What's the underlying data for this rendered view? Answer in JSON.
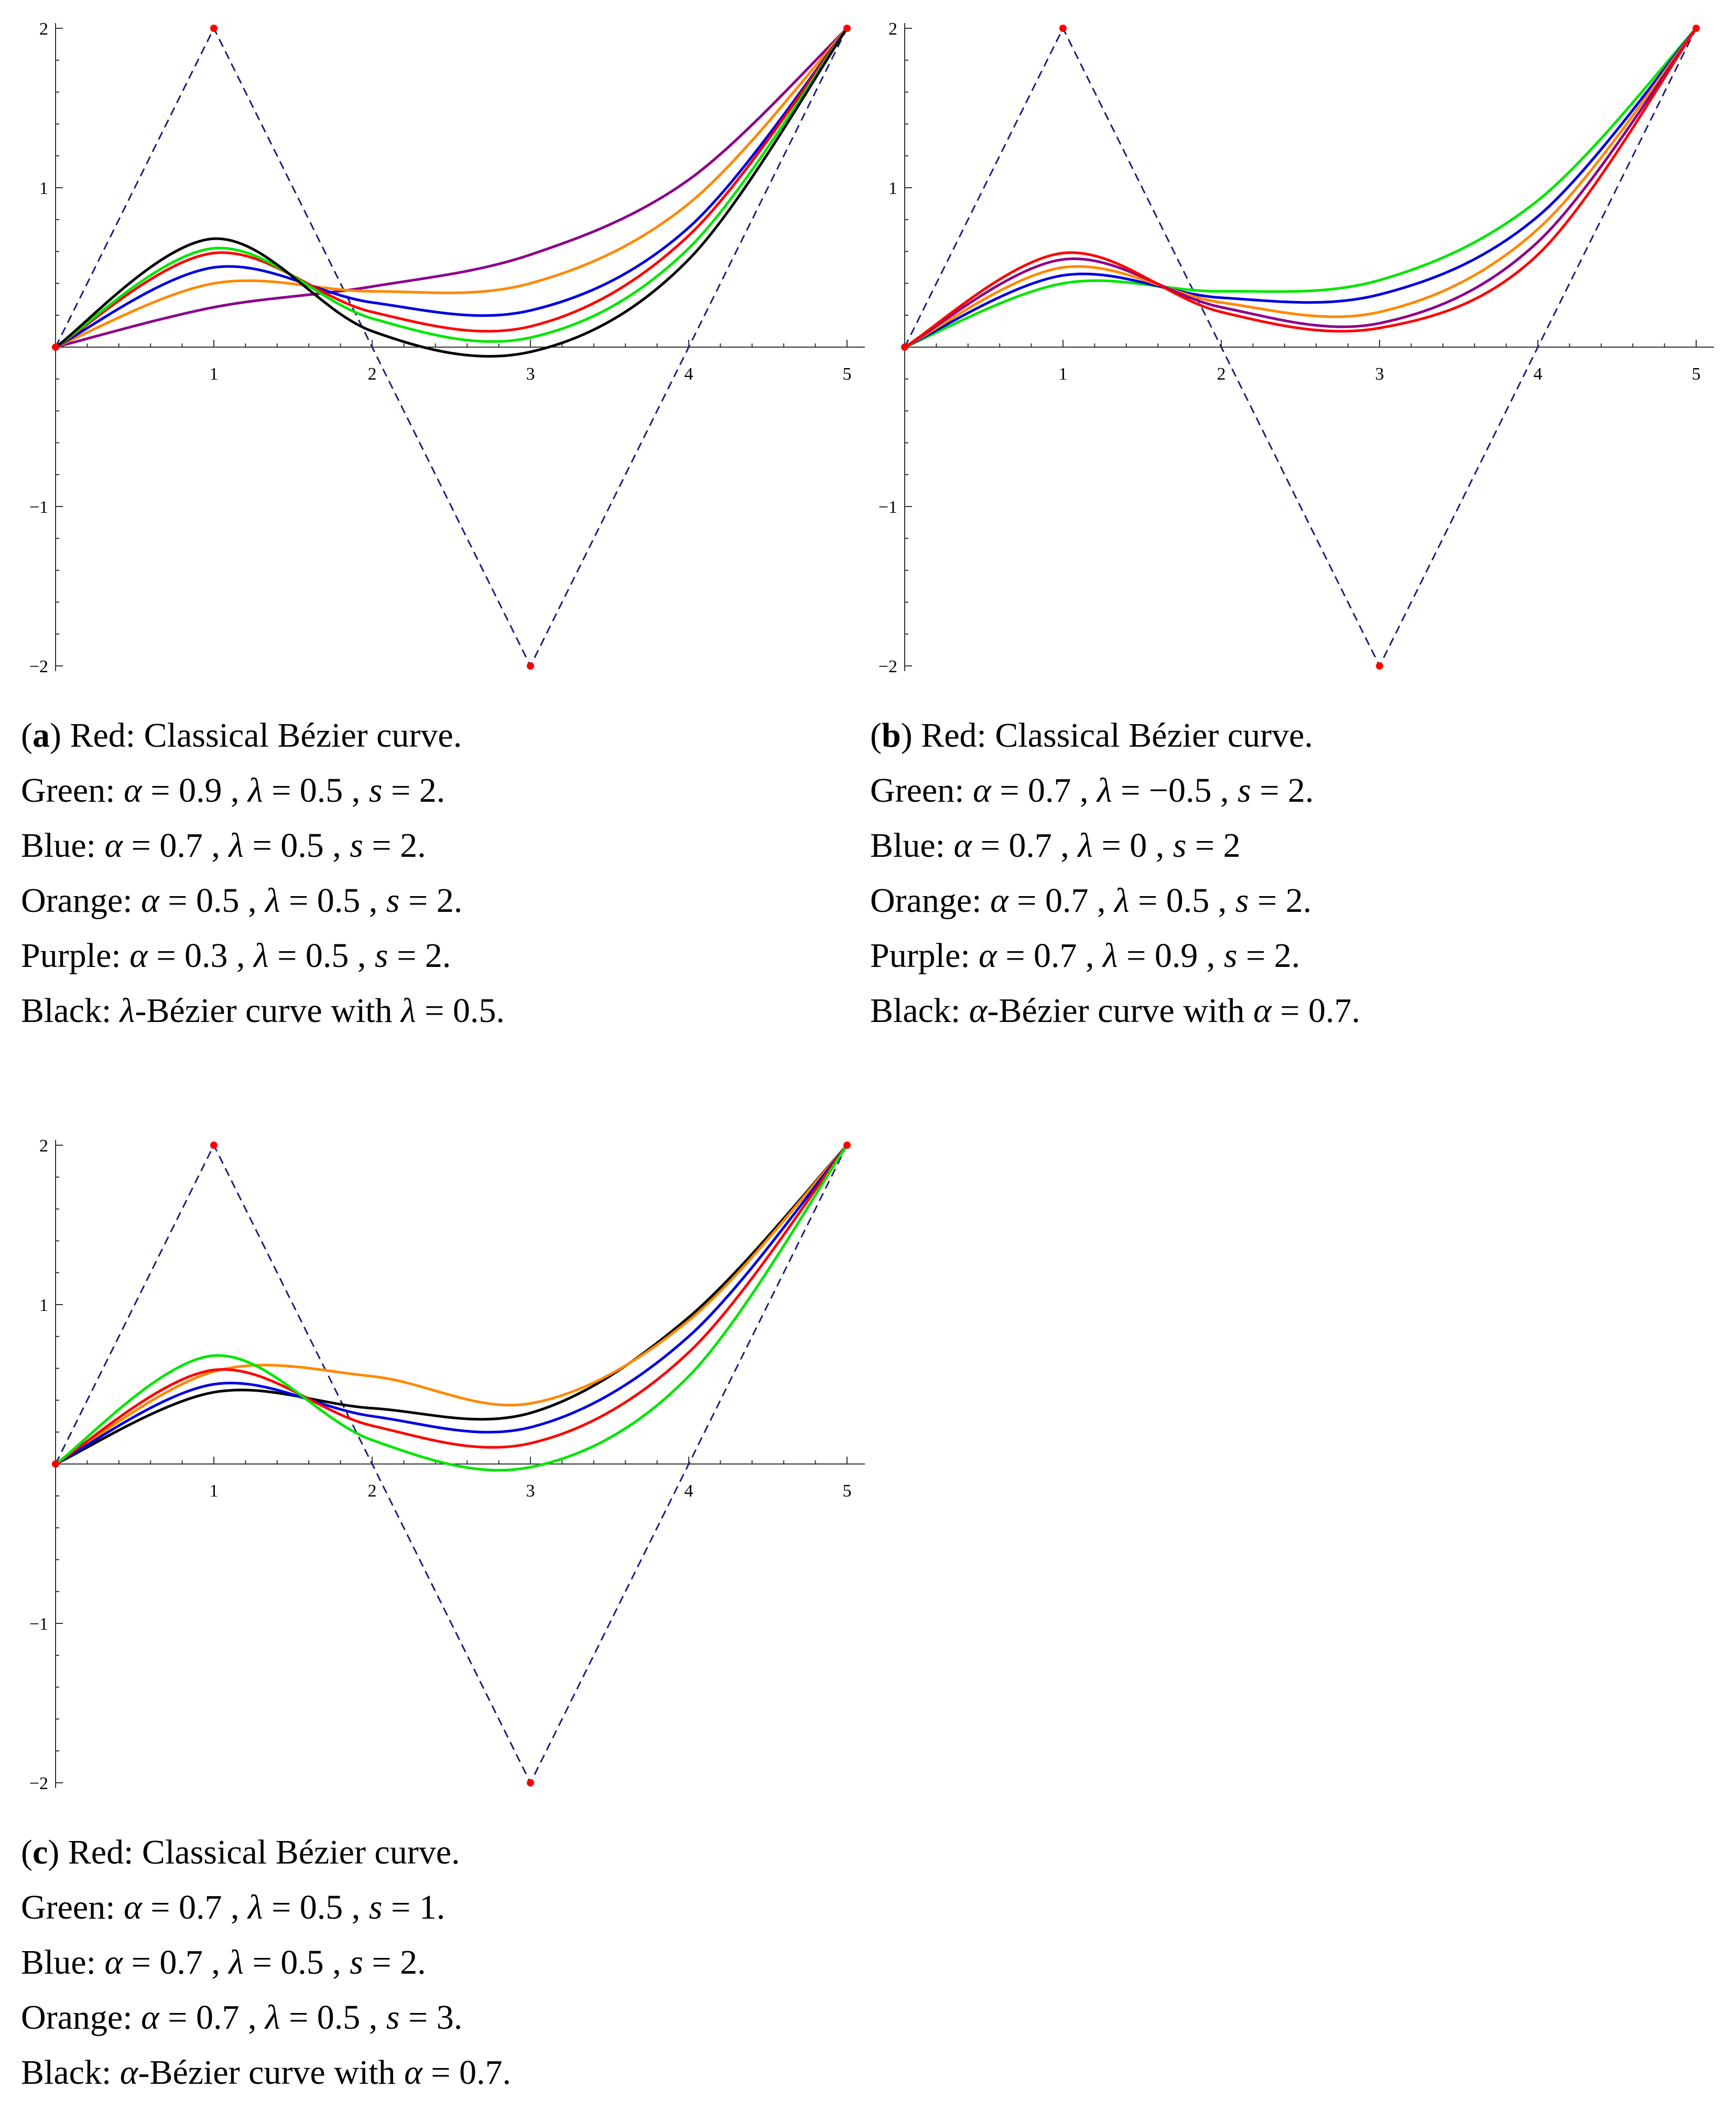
{
  "colors": {
    "red": "#ff0000",
    "green": "#00e600",
    "blue": "#0000e0",
    "orange": "#ff8800",
    "purple": "#8b008b",
    "black": "#000000",
    "polygon": "#1c1c80",
    "control_point": "#ff0000"
  },
  "chart_data": [
    {
      "id": "a",
      "type": "line",
      "title": "",
      "xlabel": "",
      "ylabel": "",
      "xlim": [
        0,
        5.1
      ],
      "ylim": [
        -2,
        2
      ],
      "x_ticks": [
        "1",
        "2",
        "3",
        "4",
        "5"
      ],
      "y_ticks": [
        "2",
        "1",
        "−1",
        "−2"
      ],
      "control_polygon": {
        "x": [
          0,
          1,
          3,
          5
        ],
        "y": [
          0,
          2,
          -2,
          2
        ]
      },
      "series": [
        {
          "name": "Purple",
          "color_key": "purple",
          "x": [
            0,
            1,
            2,
            3,
            4,
            5
          ],
          "y": [
            0,
            0.25,
            0.38,
            0.58,
            1.05,
            2
          ]
        },
        {
          "name": "Orange",
          "color_key": "orange",
          "x": [
            0,
            1,
            2,
            3,
            4,
            5
          ],
          "y": [
            0,
            0.4,
            0.35,
            0.4,
            0.9,
            2
          ]
        },
        {
          "name": "Blue",
          "color_key": "blue",
          "x": [
            0,
            1,
            2,
            3,
            4,
            5
          ],
          "y": [
            0,
            0.5,
            0.28,
            0.23,
            0.75,
            2
          ]
        },
        {
          "name": "Red",
          "color_key": "red",
          "x": [
            0,
            1,
            2,
            3,
            4,
            5
          ],
          "y": [
            0,
            0.59,
            0.22,
            0.13,
            0.7,
            2
          ]
        },
        {
          "name": "Green",
          "color_key": "green",
          "x": [
            0,
            1,
            2,
            3,
            4,
            5
          ],
          "y": [
            0,
            0.62,
            0.18,
            0.06,
            0.62,
            2
          ]
        },
        {
          "name": "Black",
          "color_key": "black",
          "x": [
            0,
            1,
            2,
            3,
            4,
            5
          ],
          "y": [
            0,
            0.68,
            0.1,
            -0.03,
            0.55,
            2
          ]
        }
      ],
      "caption": [
        {
          "label": "a",
          "text": " Red: Classical Bézier curve."
        },
        {
          "text": "Green: α = 0.9 , λ = 0.5 , s = 2."
        },
        {
          "text": "Blue: α = 0.7 , λ = 0.5 , s = 2."
        },
        {
          "text": "Orange: α = 0.5 , λ = 0.5 , s = 2."
        },
        {
          "text": "Purple: α = 0.3 , λ = 0.5 , s = 2."
        },
        {
          "text": "Black: λ-Bézier curve with λ = 0.5."
        }
      ]
    },
    {
      "id": "b",
      "type": "line",
      "title": "",
      "xlabel": "",
      "ylabel": "",
      "xlim": [
        0,
        5.1
      ],
      "ylim": [
        -2,
        2
      ],
      "x_ticks": [
        "1",
        "2",
        "3",
        "4",
        "5"
      ],
      "y_ticks": [
        "2",
        "1",
        "−1",
        "−2"
      ],
      "control_polygon": {
        "x": [
          0,
          1,
          3,
          5
        ],
        "y": [
          0,
          2,
          -2,
          2
        ]
      },
      "series": [
        {
          "name": "Green",
          "color_key": "green",
          "x": [
            0,
            1,
            2,
            3,
            4,
            5
          ],
          "y": [
            0,
            0.4,
            0.35,
            0.42,
            0.92,
            2
          ]
        },
        {
          "name": "Blue",
          "color_key": "blue",
          "x": [
            0,
            1,
            2,
            3,
            4,
            5
          ],
          "y": [
            0,
            0.45,
            0.31,
            0.33,
            0.82,
            2
          ]
        },
        {
          "name": "Orange",
          "color_key": "orange",
          "x": [
            0,
            1,
            2,
            3,
            4,
            5
          ],
          "y": [
            0,
            0.5,
            0.28,
            0.22,
            0.74,
            2
          ]
        },
        {
          "name": "Purple",
          "color_key": "purple",
          "x": [
            0,
            1,
            2,
            3,
            4,
            5
          ],
          "y": [
            0,
            0.55,
            0.25,
            0.15,
            0.66,
            2
          ]
        },
        {
          "name": "Red",
          "color_key": "red",
          "x": [
            0,
            1,
            2,
            3,
            4,
            5
          ],
          "y": [
            0,
            0.59,
            0.22,
            0.12,
            0.58,
            2
          ]
        }
      ],
      "caption": [
        {
          "label": "b",
          "text": " Red: Classical Bézier curve."
        },
        {
          "text": "Green: α = 0.7 , λ = −0.5 , s = 2."
        },
        {
          "text": "Blue: α = 0.7 , λ = 0 , s = 2"
        },
        {
          "text": "Orange: α = 0.7 , λ = 0.5 , s = 2."
        },
        {
          "text": "Purple: α = 0.7 , λ = 0.9 , s = 2."
        },
        {
          "text": "Black: α-Bézier curve with α = 0.7."
        }
      ]
    },
    {
      "id": "c",
      "type": "line",
      "title": "",
      "xlabel": "",
      "ylabel": "",
      "xlim": [
        0,
        5.1
      ],
      "ylim": [
        -2,
        2
      ],
      "x_ticks": [
        "1",
        "2",
        "3",
        "4",
        "5"
      ],
      "y_ticks": [
        "2",
        "1",
        "−1",
        "−2"
      ],
      "control_polygon": {
        "x": [
          0,
          1,
          3,
          5
        ],
        "y": [
          0,
          2,
          -2,
          2
        ]
      },
      "series": [
        {
          "name": "Black",
          "color_key": "black",
          "x": [
            0,
            1,
            2,
            3,
            4,
            5
          ],
          "y": [
            0,
            0.45,
            0.35,
            0.32,
            0.92,
            2
          ]
        },
        {
          "name": "Orange",
          "color_key": "orange",
          "x": [
            0,
            1,
            2,
            3,
            4,
            5
          ],
          "y": [
            0,
            0.58,
            0.55,
            0.38,
            0.9,
            2
          ]
        },
        {
          "name": "Blue",
          "color_key": "blue",
          "x": [
            0,
            1,
            2,
            3,
            4,
            5
          ],
          "y": [
            0,
            0.5,
            0.3,
            0.23,
            0.8,
            2
          ]
        },
        {
          "name": "Red",
          "color_key": "red",
          "x": [
            0,
            1,
            2,
            3,
            4,
            5
          ],
          "y": [
            0,
            0.59,
            0.24,
            0.13,
            0.7,
            2
          ]
        },
        {
          "name": "Green",
          "color_key": "green",
          "x": [
            0,
            1,
            2,
            3,
            4,
            5
          ],
          "y": [
            0,
            0.68,
            0.15,
            -0.02,
            0.55,
            2
          ]
        }
      ],
      "caption": [
        {
          "label": "c",
          "text": " Red: Classical Bézier curve."
        },
        {
          "text": "Green: α = 0.7 , λ = 0.5 , s = 1."
        },
        {
          "text": "Blue: α = 0.7 , λ = 0.5 , s = 2."
        },
        {
          "text": "Orange: α = 0.7 , λ = 0.5 , s = 3."
        },
        {
          "text": "Black: α-Bézier curve with α = 0.7."
        }
      ]
    }
  ]
}
